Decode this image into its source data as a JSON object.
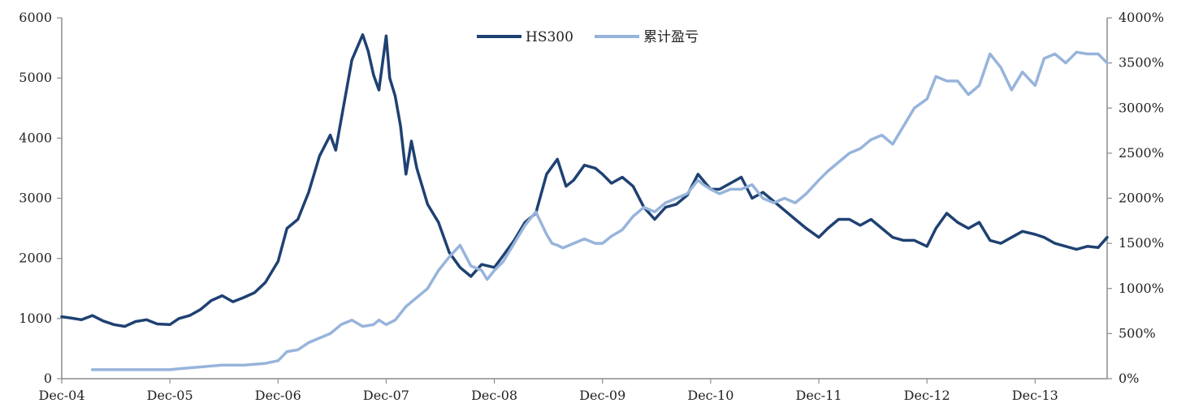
{
  "chart_data": {
    "type": "line",
    "title": "",
    "xlabel": "",
    "ylabel_left": "",
    "ylabel_right": "",
    "x_start": 2004.917,
    "x_end": 2014.583,
    "x_ticks": [
      {
        "label": "Dec-04",
        "x": 2004.917
      },
      {
        "label": "Dec-05",
        "x": 2005.917
      },
      {
        "label": "Dec-06",
        "x": 2006.917
      },
      {
        "label": "Dec-07",
        "x": 2007.917
      },
      {
        "label": "Dec-08",
        "x": 2008.917
      },
      {
        "label": "Dec-09",
        "x": 2009.917
      },
      {
        "label": "Dec-10",
        "x": 2010.917
      },
      {
        "label": "Dec-11",
        "x": 2011.917
      },
      {
        "label": "Dec-12",
        "x": 2012.917
      },
      {
        "label": "Dec-13",
        "x": 2013.917
      }
    ],
    "y_left": {
      "min": 0,
      "max": 6000,
      "ticks": [
        0,
        1000,
        2000,
        3000,
        4000,
        5000,
        6000
      ],
      "tick_labels": [
        "0",
        "1000",
        "2000",
        "3000",
        "4000",
        "5000",
        "6000"
      ]
    },
    "y_right": {
      "min": 0,
      "max": 4000,
      "ticks": [
        0,
        500,
        1000,
        1500,
        2000,
        2500,
        3000,
        3500,
        4000
      ],
      "tick_labels": [
        "0%",
        "500%",
        "1000%",
        "1500%",
        "2000%",
        "2500%",
        "3000%",
        "3500%",
        "4000%"
      ]
    },
    "legend": {
      "position": "top-center"
    },
    "series": [
      {
        "name": "HS300",
        "axis": "left",
        "color": "#1f4172",
        "x": [
          2004.917,
          2005.0,
          2005.1,
          2005.2,
          2005.3,
          2005.4,
          2005.5,
          2005.6,
          2005.7,
          2005.8,
          2005.917,
          2006.0,
          2006.1,
          2006.2,
          2006.3,
          2006.4,
          2006.5,
          2006.6,
          2006.7,
          2006.8,
          2006.917,
          2007.0,
          2007.1,
          2007.2,
          2007.3,
          2007.4,
          2007.45,
          2007.5,
          2007.6,
          2007.7,
          2007.75,
          2007.8,
          2007.85,
          2007.917,
          2007.95,
          2008.0,
          2008.05,
          2008.1,
          2008.15,
          2008.2,
          2008.3,
          2008.4,
          2008.5,
          2008.6,
          2008.7,
          2008.8,
          2008.917,
          2009.0,
          2009.1,
          2009.2,
          2009.3,
          2009.4,
          2009.5,
          2009.58,
          2009.65,
          2009.75,
          2009.85,
          2009.917,
          2010.0,
          2010.1,
          2010.2,
          2010.3,
          2010.4,
          2010.5,
          2010.6,
          2010.7,
          2010.8,
          2010.87,
          2010.917,
          2011.0,
          2011.1,
          2011.2,
          2011.3,
          2011.4,
          2011.5,
          2011.6,
          2011.7,
          2011.8,
          2011.917,
          2012.0,
          2012.1,
          2012.2,
          2012.3,
          2012.4,
          2012.5,
          2012.6,
          2012.7,
          2012.8,
          2012.917,
          2013.0,
          2013.1,
          2013.2,
          2013.3,
          2013.4,
          2013.5,
          2013.6,
          2013.7,
          2013.8,
          2013.917,
          2014.0,
          2014.1,
          2014.2,
          2014.3,
          2014.4,
          2014.5,
          2014.583
        ],
        "values": [
          1030,
          1010,
          980,
          1050,
          960,
          900,
          870,
          950,
          980,
          910,
          900,
          1000,
          1050,
          1150,
          1300,
          1380,
          1280,
          1350,
          1430,
          1600,
          1950,
          2500,
          2650,
          3100,
          3700,
          4050,
          3800,
          4300,
          5300,
          5720,
          5450,
          5050,
          4800,
          5700,
          5000,
          4700,
          4200,
          3400,
          3950,
          3500,
          2900,
          2600,
          2100,
          1850,
          1700,
          1900,
          1850,
          2050,
          2300,
          2600,
          2750,
          3400,
          3650,
          3200,
          3300,
          3550,
          3500,
          3400,
          3250,
          3350,
          3200,
          2850,
          2650,
          2850,
          2900,
          3050,
          3400,
          3250,
          3150,
          3150,
          3250,
          3350,
          3000,
          3100,
          2950,
          2800,
          2650,
          2500,
          2350,
          2500,
          2650,
          2650,
          2550,
          2650,
          2500,
          2350,
          2300,
          2300,
          2200,
          2500,
          2750,
          2600,
          2500,
          2600,
          2300,
          2250,
          2350,
          2450,
          2400,
          2350,
          2250,
          2200,
          2150,
          2200,
          2180,
          2350
        ]
      },
      {
        "name": "累计盈亏",
        "axis": "right",
        "color": "#97b4db",
        "x": [
          2005.2,
          2005.4,
          2005.6,
          2005.8,
          2005.917,
          2006.0,
          2006.2,
          2006.4,
          2006.6,
          2006.8,
          2006.917,
          2007.0,
          2007.1,
          2007.2,
          2007.3,
          2007.4,
          2007.5,
          2007.6,
          2007.7,
          2007.8,
          2007.85,
          2007.917,
          2008.0,
          2008.1,
          2008.2,
          2008.3,
          2008.4,
          2008.5,
          2008.6,
          2008.7,
          2008.8,
          2008.85,
          2008.917,
          2009.0,
          2009.1,
          2009.2,
          2009.3,
          2009.4,
          2009.45,
          2009.5,
          2009.55,
          2009.65,
          2009.75,
          2009.85,
          2009.917,
          2010.0,
          2010.1,
          2010.2,
          2010.3,
          2010.4,
          2010.5,
          2010.6,
          2010.7,
          2010.8,
          2010.85,
          2010.917,
          2011.0,
          2011.1,
          2011.2,
          2011.3,
          2011.4,
          2011.5,
          2011.6,
          2011.7,
          2011.8,
          2011.917,
          2012.0,
          2012.1,
          2012.2,
          2012.3,
          2012.4,
          2012.5,
          2012.6,
          2012.7,
          2012.8,
          2012.917,
          2013.0,
          2013.1,
          2013.2,
          2013.3,
          2013.4,
          2013.5,
          2013.6,
          2013.7,
          2013.8,
          2013.917,
          2014.0,
          2014.1,
          2014.2,
          2014.3,
          2014.4,
          2014.5,
          2014.583
        ],
        "values": [
          100,
          100,
          100,
          100,
          100,
          110,
          130,
          150,
          150,
          170,
          200,
          300,
          320,
          400,
          450,
          500,
          600,
          650,
          580,
          600,
          650,
          600,
          650,
          800,
          900,
          1000,
          1200,
          1350,
          1480,
          1250,
          1200,
          1100,
          1200,
          1300,
          1500,
          1700,
          1850,
          1600,
          1500,
          1480,
          1450,
          1500,
          1550,
          1500,
          1500,
          1580,
          1650,
          1800,
          1900,
          1850,
          1950,
          2000,
          2050,
          2200,
          2150,
          2100,
          2050,
          2100,
          2100,
          2150,
          2000,
          1950,
          2000,
          1950,
          2050,
          2200,
          2300,
          2400,
          2500,
          2550,
          2650,
          2700,
          2600,
          2800,
          3000,
          3100,
          3350,
          3300,
          3300,
          3150,
          3250,
          3600,
          3450,
          3200,
          3400,
          3250,
          3550,
          3600,
          3500,
          3620,
          3600,
          3600,
          3500
        ]
      }
    ]
  }
}
